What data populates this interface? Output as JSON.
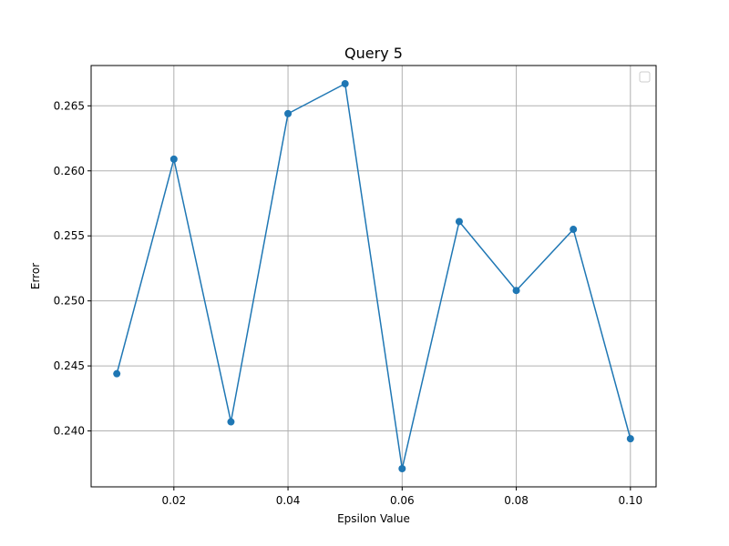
{
  "chart_data": {
    "type": "line",
    "title": "Query 5",
    "xlabel": "Epsilon Value",
    "ylabel": "Error",
    "xlim": [
      0.0055,
      0.1045
    ],
    "ylim": [
      0.2357,
      0.2681
    ],
    "xticks": [
      0.02,
      0.04,
      0.06,
      0.08,
      0.1
    ],
    "xtick_labels": [
      "0.02",
      "0.04",
      "0.06",
      "0.08",
      "0.10"
    ],
    "yticks": [
      0.24,
      0.245,
      0.25,
      0.255,
      0.26,
      0.265
    ],
    "ytick_labels": [
      "0.240",
      "0.245",
      "0.250",
      "0.255",
      "0.260",
      "0.265"
    ],
    "grid": true,
    "legend": "top-right (empty)",
    "series": [
      {
        "color": "#1f77b4",
        "marker": "circle",
        "x": [
          0.01,
          0.02,
          0.03,
          0.04,
          0.05,
          0.06,
          0.07,
          0.08,
          0.09,
          0.1
        ],
        "y": [
          0.2444,
          0.2609,
          0.2407,
          0.2644,
          0.2667,
          0.2371,
          0.2561,
          0.2508,
          0.2555,
          0.2394
        ]
      }
    ]
  }
}
